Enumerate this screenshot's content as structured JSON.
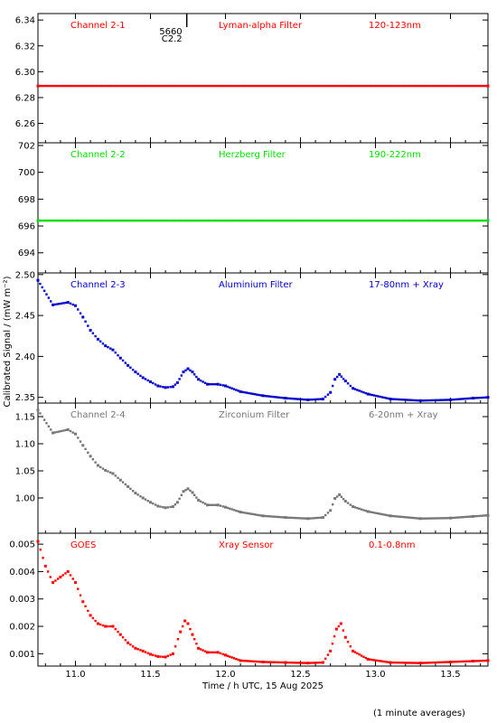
{
  "x_axis": {
    "label": "Time / h UTC, 15 Aug 2025",
    "range": [
      10.75,
      13.75
    ],
    "ticks": [
      11.0,
      11.5,
      12.0,
      12.5,
      13.0,
      13.5
    ],
    "tick_labels": [
      "11.0",
      "11.5",
      "12.0",
      "12.5",
      "13.0",
      "13.5"
    ]
  },
  "y_axis_label": "Calibrated Signal / (mW m⁻²)",
  "footnote": "(1 minute averages)",
  "event_marker": {
    "x": 11.73,
    "id": "5660",
    "class": "C2.2"
  },
  "chart_data": [
    {
      "type": "scatter",
      "channel": "Channel 2-1",
      "filter": "Lyman-alpha Filter",
      "band": "120-123nm",
      "color": "#ff0000",
      "ylim": [
        6.245,
        6.345
      ],
      "yticks": [
        6.26,
        6.28,
        6.3,
        6.32,
        6.34
      ],
      "ytick_labels": [
        "6.26",
        "6.28",
        "6.30",
        "6.32",
        "6.34"
      ],
      "x": [
        10.75,
        13.75
      ],
      "values": [
        6.289,
        6.289
      ]
    },
    {
      "type": "scatter",
      "channel": "Channel 2-2",
      "filter": "Herzberg Filter",
      "band": "190-222nm",
      "color": "#00dd00",
      "ylim": [
        692.5,
        702.2
      ],
      "yticks": [
        694,
        696,
        698,
        700,
        702
      ],
      "ytick_labels": [
        "694",
        "696",
        "698",
        "700",
        "702"
      ],
      "x": [
        10.75,
        13.75
      ],
      "values": [
        696.4,
        696.4
      ]
    },
    {
      "type": "scatter",
      "channel": "Channel 2-3",
      "filter": "Aluminium Filter",
      "band": "17-80nm + Xray",
      "color": "#0000cc",
      "ylim": [
        2.343,
        2.502
      ],
      "yticks": [
        2.35,
        2.4,
        2.45,
        2.5
      ],
      "ytick_labels": [
        "2.35",
        "2.40",
        "2.45",
        "2.50"
      ],
      "x": [
        10.75,
        10.85,
        10.95,
        11.0,
        11.05,
        11.1,
        11.15,
        11.2,
        11.25,
        11.3,
        11.35,
        11.4,
        11.45,
        11.5,
        11.55,
        11.6,
        11.65,
        11.68,
        11.72,
        11.75,
        11.78,
        11.82,
        11.88,
        11.95,
        12.0,
        12.1,
        12.25,
        12.4,
        12.55,
        12.65,
        12.7,
        12.73,
        12.76,
        12.8,
        12.85,
        12.95,
        13.1,
        13.3,
        13.5,
        13.65,
        13.75
      ],
      "values": [
        2.493,
        2.463,
        2.466,
        2.462,
        2.448,
        2.432,
        2.421,
        2.413,
        2.408,
        2.398,
        2.389,
        2.381,
        2.374,
        2.369,
        2.364,
        2.362,
        2.363,
        2.368,
        2.381,
        2.385,
        2.381,
        2.372,
        2.366,
        2.366,
        2.364,
        2.357,
        2.352,
        2.349,
        2.347,
        2.348,
        2.356,
        2.372,
        2.378,
        2.37,
        2.361,
        2.354,
        2.348,
        2.346,
        2.347,
        2.349,
        2.35
      ]
    },
    {
      "type": "scatter",
      "channel": "Channel 2-4",
      "filter": "Zirconium Filter",
      "band": "6-20nm + Xray",
      "color": "#777777",
      "ylim": [
        0.935,
        1.175
      ],
      "yticks": [
        1.0,
        1.05,
        1.1,
        1.15
      ],
      "ytick_labels": [
        "1.00",
        "1.05",
        "1.10",
        "1.15"
      ],
      "x": [
        10.75,
        10.85,
        10.95,
        11.0,
        11.05,
        11.1,
        11.15,
        11.2,
        11.25,
        11.3,
        11.35,
        11.4,
        11.45,
        11.5,
        11.55,
        11.6,
        11.65,
        11.68,
        11.72,
        11.75,
        11.78,
        11.82,
        11.88,
        11.95,
        12.0,
        12.1,
        12.25,
        12.4,
        12.55,
        12.65,
        12.7,
        12.73,
        12.76,
        12.8,
        12.85,
        12.95,
        13.1,
        13.3,
        13.5,
        13.65,
        13.75
      ],
      "values": [
        1.162,
        1.12,
        1.126,
        1.118,
        1.097,
        1.077,
        1.06,
        1.051,
        1.045,
        1.033,
        1.021,
        1.009,
        1.0,
        0.992,
        0.985,
        0.982,
        0.984,
        0.992,
        1.012,
        1.017,
        1.01,
        0.996,
        0.987,
        0.987,
        0.983,
        0.974,
        0.967,
        0.964,
        0.962,
        0.964,
        0.977,
        0.999,
        1.006,
        0.994,
        0.984,
        0.975,
        0.967,
        0.962,
        0.963,
        0.966,
        0.968
      ]
    },
    {
      "type": "scatter",
      "channel": "GOES",
      "filter": "Xray Sensor",
      "band": "0.1-0.8nm",
      "color": "#ff0000",
      "ylim": [
        0.00055,
        0.0054
      ],
      "yticks": [
        0.001,
        0.002,
        0.003,
        0.004,
        0.005
      ],
      "ytick_labels": [
        "0.001",
        "0.002",
        "0.003",
        "0.004",
        "0.005"
      ],
      "x": [
        10.75,
        10.8,
        10.85,
        10.9,
        10.95,
        11.0,
        11.05,
        11.1,
        11.15,
        11.2,
        11.25,
        11.3,
        11.35,
        11.4,
        11.45,
        11.5,
        11.55,
        11.6,
        11.65,
        11.7,
        11.73,
        11.75,
        11.78,
        11.82,
        11.88,
        11.95,
        12.0,
        12.1,
        12.25,
        12.4,
        12.55,
        12.65,
        12.7,
        12.74,
        12.77,
        12.8,
        12.85,
        12.95,
        13.1,
        13.3,
        13.5,
        13.65,
        13.75
      ],
      "values": [
        0.0051,
        0.0042,
        0.0036,
        0.0038,
        0.004,
        0.0036,
        0.0029,
        0.0024,
        0.0021,
        0.002,
        0.002,
        0.0017,
        0.0014,
        0.0012,
        0.0011,
        0.00098,
        0.0009,
        0.00088,
        0.001,
        0.0018,
        0.0022,
        0.0021,
        0.0017,
        0.0012,
        0.00105,
        0.00105,
        0.00095,
        0.00075,
        0.0007,
        0.00068,
        0.00066,
        0.00068,
        0.0011,
        0.0019,
        0.0021,
        0.0016,
        0.0011,
        0.0008,
        0.00068,
        0.00066,
        0.0007,
        0.00073,
        0.00075
      ]
    }
  ]
}
